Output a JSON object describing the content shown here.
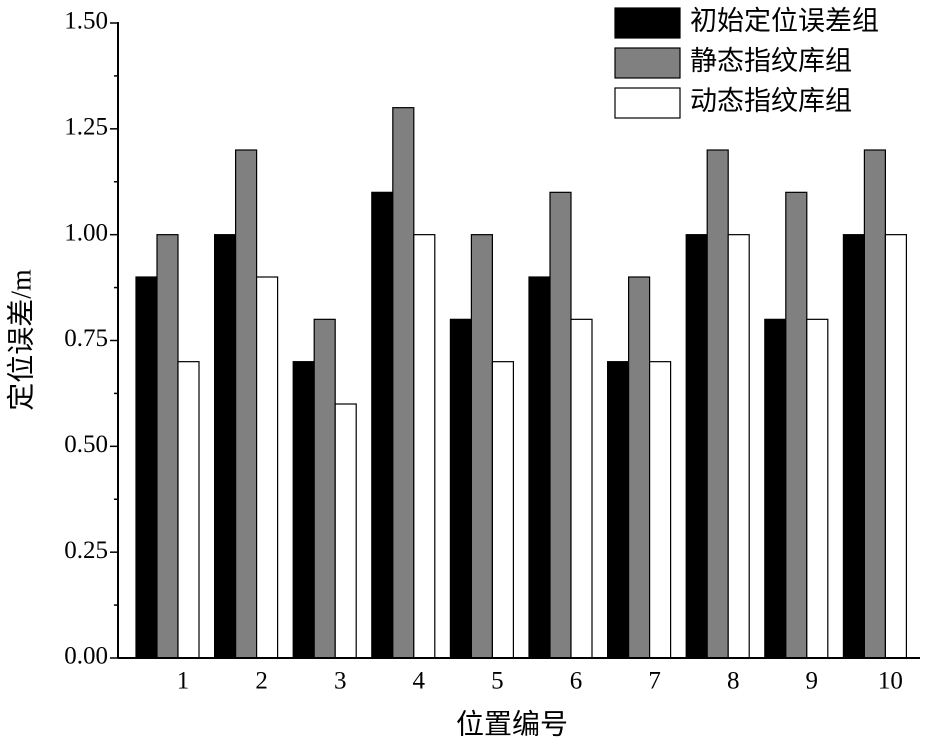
{
  "chart_data": {
    "type": "bar",
    "x_label": "位置编号",
    "y_label": "定位误差/m",
    "categories": [
      "1",
      "2",
      "3",
      "4",
      "5",
      "6",
      "7",
      "8",
      "9",
      "10"
    ],
    "series": [
      {
        "name": "初始定位误差组",
        "color": "#000000",
        "values": [
          0.9,
          1.0,
          0.7,
          1.1,
          0.8,
          0.9,
          0.7,
          1.0,
          0.8,
          1.0
        ]
      },
      {
        "name": "静态指纹库组",
        "color": "#808080",
        "values": [
          1.0,
          1.2,
          0.8,
          1.3,
          1.0,
          1.1,
          0.9,
          1.2,
          1.1,
          1.2
        ]
      },
      {
        "name": "动态指纹库组",
        "color": "#ffffff",
        "values": [
          0.7,
          0.9,
          0.6,
          1.0,
          0.7,
          0.8,
          0.7,
          1.0,
          0.8,
          1.0
        ]
      }
    ],
    "ylim": [
      0,
      1.5
    ],
    "yticks": [
      {
        "value": 0,
        "label": "0.00"
      },
      {
        "value": 0.25,
        "label": "0.25"
      },
      {
        "value": 0.5,
        "label": "0.50"
      },
      {
        "value": 0.75,
        "label": "0.75"
      },
      {
        "value": 1,
        "label": "1.00"
      },
      {
        "value": 1.25,
        "label": "1.25"
      },
      {
        "value": 1.5,
        "label": "1.50"
      }
    ],
    "legend": "upper right"
  }
}
